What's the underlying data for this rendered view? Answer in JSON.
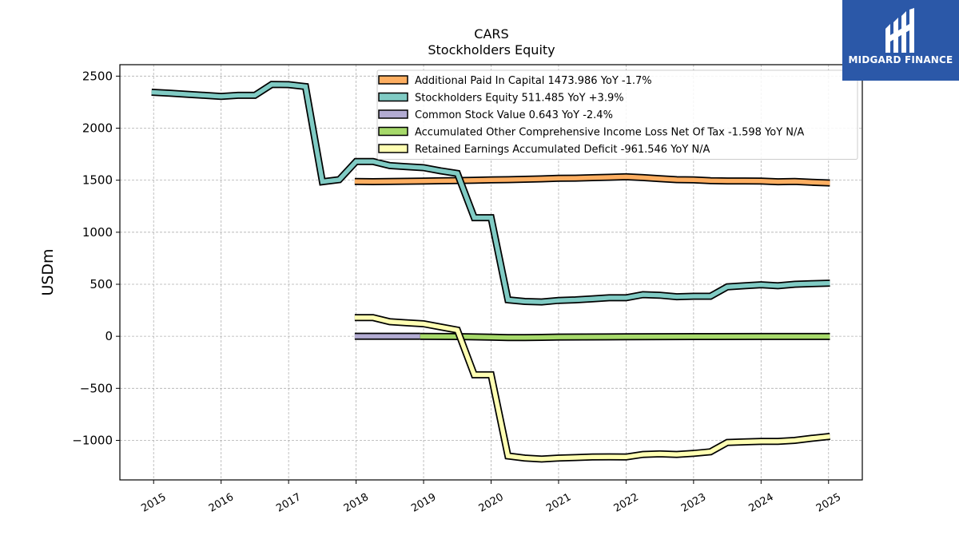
{
  "brand": {
    "name": "MIDGARD FINANCE",
    "bg_color": "#2b58a8"
  },
  "chart_data": {
    "type": "line",
    "title": "CARS",
    "subtitle": "Stockholders  Equity",
    "xlabel": "",
    "ylabel": "USDm",
    "xlim": [
      2014.5,
      2025.5
    ],
    "ylim": [
      -1380,
      2610
    ],
    "x_ticks": [
      2015,
      2016,
      2017,
      2018,
      2019,
      2020,
      2021,
      2022,
      2023,
      2024,
      2025
    ],
    "x_tick_labels": [
      "2015",
      "2016",
      "2017",
      "2018",
      "2019",
      "2020",
      "2021",
      "2022",
      "2023",
      "2024",
      "2025"
    ],
    "y_ticks": [
      -1000,
      -500,
      0,
      500,
      1000,
      1500,
      2000,
      2500
    ],
    "y_tick_labels": [
      "−1000",
      "−500",
      "0",
      "500",
      "1000",
      "1500",
      "2000",
      "2500"
    ],
    "grid": true,
    "legend_position": "top-right",
    "series": [
      {
        "name": "Additional Paid In Capital  1473.986 YoY -1.7%",
        "color": "#fdae61",
        "x": [
          2017.98,
          2018.25,
          2018.5,
          2018.75,
          2019.0,
          2019.25,
          2019.5,
          2019.75,
          2020.0,
          2020.25,
          2020.5,
          2020.75,
          2021.0,
          2021.25,
          2021.5,
          2021.75,
          2022.0,
          2022.25,
          2022.5,
          2022.75,
          2023.0,
          2023.25,
          2023.5,
          2023.75,
          2024.0,
          2024.25,
          2024.5,
          2024.75,
          2025.02
        ],
        "y": [
          1488,
          1486,
          1488,
          1490,
          1492,
          1494,
          1497,
          1500,
          1503,
          1505,
          1509,
          1513,
          1518,
          1520,
          1524,
          1528,
          1533,
          1525,
          1515,
          1505,
          1503,
          1495,
          1493,
          1493,
          1492,
          1485,
          1488,
          1480,
          1474
        ]
      },
      {
        "name": "Stockholders Equity  511.485 YoY +3.9%",
        "color": "#80cbc4",
        "x": [
          2014.97,
          2015.25,
          2015.5,
          2015.75,
          2016.0,
          2016.25,
          2016.5,
          2016.75,
          2017.0,
          2017.25,
          2017.5,
          2017.75,
          2018.0,
          2018.25,
          2018.5,
          2018.75,
          2019.0,
          2019.25,
          2019.5,
          2019.75,
          2020.0,
          2020.25,
          2020.5,
          2020.75,
          2021.0,
          2021.25,
          2021.5,
          2021.75,
          2022.0,
          2022.25,
          2022.5,
          2022.75,
          2023.0,
          2023.25,
          2023.5,
          2023.75,
          2024.0,
          2024.25,
          2024.5,
          2024.75,
          2025.02
        ],
        "y": [
          2345,
          2335,
          2325,
          2315,
          2305,
          2315,
          2315,
          2420,
          2418,
          2400,
          1485,
          1505,
          1680,
          1680,
          1640,
          1630,
          1620,
          1590,
          1565,
          1140,
          1140,
          350,
          335,
          330,
          345,
          350,
          360,
          370,
          370,
          400,
          395,
          380,
          385,
          385,
          475,
          485,
          495,
          485,
          500,
          505,
          511
        ]
      },
      {
        "name": "Common Stock Value  0.643 YoY -2.4%",
        "color": "#b2abd2",
        "x": [
          2017.98,
          2018.25,
          2018.5,
          2018.75,
          2018.95
        ],
        "y": [
          0.7,
          0.7,
          0.7,
          0.7,
          0.7
        ]
      },
      {
        "name": "Accumulated Other Comprehensive Income Loss Net Of Tax  -1.598 YoY N/A",
        "color": "#a6d96a",
        "x": [
          2018.95,
          2019.5,
          2020.0,
          2020.25,
          2020.5,
          2020.75,
          2021.0,
          2022.0,
          2023.0,
          2024.0,
          2025.02
        ],
        "y": [
          0,
          -3,
          -8,
          -12,
          -12,
          -10,
          -7,
          -5,
          -3,
          -2,
          -1.6
        ]
      },
      {
        "name": "Retained Earnings Accumulated Deficit  -961.546 YoY N/A",
        "color": "#ffffb3",
        "x": [
          2017.98,
          2018.25,
          2018.5,
          2018.75,
          2019.0,
          2019.25,
          2019.5,
          2019.75,
          2020.0,
          2020.25,
          2020.5,
          2020.75,
          2021.0,
          2021.25,
          2021.5,
          2021.75,
          2022.0,
          2022.25,
          2022.5,
          2022.75,
          2023.0,
          2023.25,
          2023.5,
          2023.75,
          2024.0,
          2024.25,
          2024.5,
          2024.75,
          2025.02
        ],
        "y": [
          180,
          180,
          140,
          130,
          120,
          90,
          60,
          -370,
          -370,
          -1150,
          -1170,
          -1180,
          -1170,
          -1165,
          -1160,
          -1158,
          -1160,
          -1135,
          -1130,
          -1135,
          -1125,
          -1110,
          -1020,
          -1015,
          -1010,
          -1010,
          -1000,
          -980,
          -962
        ]
      }
    ]
  }
}
